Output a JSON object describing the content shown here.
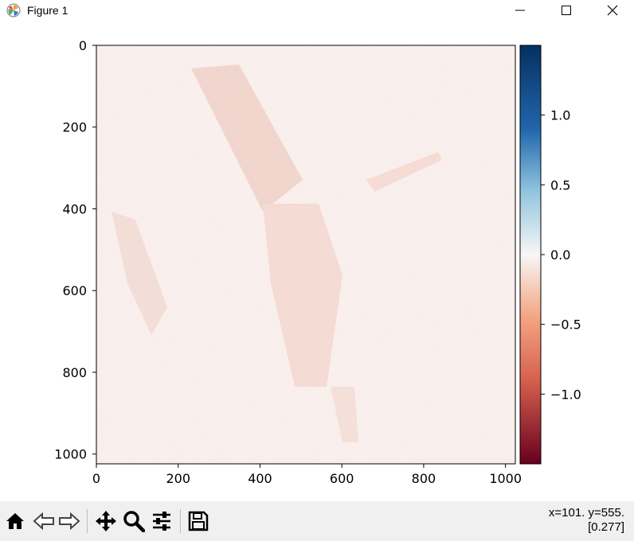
{
  "window": {
    "title": "Figure 1",
    "icon": "matplotlib-logo-icon"
  },
  "window_controls": {
    "minimize": "minimize-icon",
    "maximize": "maximize-icon",
    "close": "close-icon"
  },
  "chart_data": {
    "type": "heatmap",
    "title": "",
    "xlabel": "",
    "ylabel": "",
    "xlim": [
      0,
      1024
    ],
    "ylim": [
      1024,
      0
    ],
    "x_ticks": [
      0,
      200,
      400,
      600,
      800,
      1000
    ],
    "y_ticks": [
      0,
      200,
      400,
      600,
      800,
      1000
    ],
    "colormap": "RdBu",
    "colorbar": {
      "range": [
        -1.5,
        1.5
      ],
      "ticks": [
        1.0,
        0.5,
        0.0,
        -0.5,
        -1.0
      ],
      "tick_labels": [
        "1.0",
        "0.5",
        "0.0",
        "−0.5",
        "−1.0"
      ],
      "colors": {
        "top": "#053061",
        "upper_mid": "#4393c3",
        "center": "#f7f7f7",
        "lower_mid": "#f4a582",
        "bottom": "#67001f"
      }
    },
    "content_note_colors": {
      "background": "#f9efec"
    }
  },
  "toolbar": {
    "buttons": [
      {
        "name": "home-button",
        "icon": "home-icon"
      },
      {
        "name": "back-button",
        "icon": "arrow-left-icon"
      },
      {
        "name": "forward-button",
        "icon": "arrow-right-icon"
      },
      {
        "name": "pan-button",
        "icon": "move-icon"
      },
      {
        "name": "zoom-button",
        "icon": "magnifier-icon"
      },
      {
        "name": "configure-subplots-button",
        "icon": "sliders-icon"
      },
      {
        "name": "save-button",
        "icon": "floppy-disk-icon"
      }
    ],
    "coords_line1": "x=101. y=555.",
    "coords_line2": "[0.277]"
  }
}
